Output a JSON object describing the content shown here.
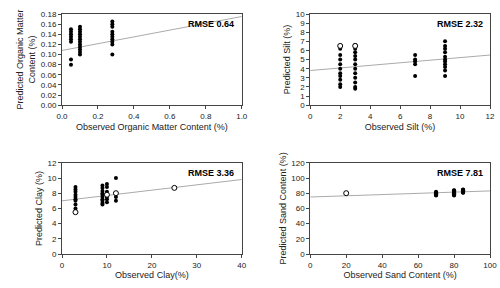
{
  "chart_data": [
    {
      "type": "scatter",
      "annotations": [
        "RMSE 0.64"
      ],
      "xlabel": "Observed Organic Matter Content (%)",
      "ylabel": "Predicted Organic Matter\nContent (%)",
      "xlim": [
        0,
        1.0
      ],
      "ylim": [
        0.0,
        0.18
      ],
      "xticks": [
        {
          "value": 0,
          "label": "0.0"
        },
        0.2,
        0.4,
        0.6,
        0.8,
        {
          "value": 1.0,
          "label": "1.0"
        }
      ],
      "yticks": [
        {
          "value": 0.0,
          "label": "0.00"
        },
        0.02,
        0.04,
        0.06,
        0.08,
        {
          "value": 0.1,
          "label": "0.10"
        },
        0.12,
        0.14,
        0.16,
        0.18
      ],
      "grid": false,
      "series": [
        {
          "type": "line",
          "color": "#aaaaaa",
          "x": [
            0,
            1.0
          ],
          "values": [
            0.108,
            0.175
          ]
        },
        {
          "type": "scatter",
          "color": "black",
          "marker": "circle",
          "x": [
            0.05,
            0.05,
            0.05,
            0.05,
            0.05,
            0.05,
            0.05,
            0.05,
            0.1,
            0.1,
            0.1,
            0.1,
            0.1,
            0.1,
            0.1,
            0.1,
            0.1,
            0.1,
            0.1,
            0.1,
            0.28,
            0.28,
            0.28,
            0.28,
            0.28,
            0.28,
            0.28,
            0.28,
            0.28,
            0.28
          ],
          "values": [
            0.15,
            0.145,
            0.14,
            0.135,
            0.13,
            0.125,
            0.09,
            0.08,
            0.155,
            0.15,
            0.145,
            0.14,
            0.135,
            0.13,
            0.125,
            0.12,
            0.115,
            0.11,
            0.105,
            0.1,
            0.165,
            0.16,
            0.155,
            0.145,
            0.14,
            0.135,
            0.13,
            0.125,
            0.12,
            0.1
          ]
        }
      ]
    },
    {
      "type": "scatter",
      "annotations": [
        "RMSE 2.32"
      ],
      "xlabel": "Observed Silt (%)",
      "ylabel": "Predicted Silt (%)",
      "xlim": [
        0,
        12
      ],
      "ylim": [
        0,
        10
      ],
      "xticks": [
        0,
        2,
        4,
        6,
        8,
        10,
        12
      ],
      "yticks": [
        0,
        1,
        2,
        3,
        4,
        5,
        6,
        7,
        8,
        9,
        10
      ],
      "grid": false,
      "series": [
        {
          "type": "line",
          "color": "#aaaaaa",
          "x": [
            0,
            12
          ],
          "values": [
            3.8,
            5.5
          ]
        },
        {
          "type": "scatter",
          "color": "black",
          "marker": "circle",
          "x": [
            2,
            2,
            2,
            2,
            2,
            2,
            2,
            2,
            2,
            2,
            2,
            3,
            3,
            3,
            3,
            3,
            3,
            3,
            3,
            3,
            3,
            3,
            3,
            7,
            7,
            7,
            7,
            7,
            9,
            9,
            9,
            9,
            9,
            9,
            9,
            9,
            9,
            9,
            9
          ],
          "values": [
            6.5,
            6.2,
            5.5,
            5.0,
            4.5,
            4.0,
            3.5,
            3.2,
            2.8,
            2.3,
            2.0,
            6.6,
            6.2,
            5.8,
            5.4,
            5.0,
            4.5,
            4.0,
            3.5,
            3.0,
            2.5,
            2.0,
            1.8,
            5.5,
            5.0,
            4.8,
            4.5,
            3.2,
            7.0,
            6.5,
            6.2,
            5.8,
            5.3,
            5.0,
            4.8,
            4.5,
            4.2,
            3.8,
            3.2
          ]
        },
        {
          "type": "scatter",
          "color": "black",
          "marker": "open_circle",
          "x": [
            2,
            3
          ],
          "values": [
            6.5,
            6.5
          ]
        }
      ]
    },
    {
      "type": "scatter",
      "annotations": [
        "RMSE 3.36"
      ],
      "xlabel": "Observed Clay(%)",
      "ylabel": "Predicted Clay (%)",
      "xlim": [
        0,
        40
      ],
      "ylim": [
        0,
        12
      ],
      "xticks": [
        0,
        10,
        20,
        30,
        40
      ],
      "yticks": [
        0,
        2,
        4,
        6,
        8,
        10,
        12
      ],
      "grid": false,
      "series": [
        {
          "type": "line",
          "color": "#aaaaaa",
          "x": [
            0,
            40
          ],
          "values": [
            7.0,
            9.8
          ]
        },
        {
          "type": "scatter",
          "color": "black",
          "marker": "circle",
          "x": [
            3,
            3,
            3,
            3,
            3,
            3,
            3,
            3,
            3,
            9,
            9,
            9,
            9,
            9,
            9,
            9,
            9,
            9,
            9,
            10,
            10,
            10,
            10,
            10,
            10,
            10,
            12,
            12,
            12,
            12
          ],
          "values": [
            8.8,
            8.5,
            8.2,
            7.8,
            7.5,
            7.2,
            7.0,
            6.5,
            6.0,
            9.0,
            8.7,
            8.3,
            8.0,
            7.8,
            7.5,
            7.2,
            7.0,
            6.7,
            6.5,
            9.2,
            8.8,
            8.2,
            7.8,
            7.5,
            7.2,
            6.8,
            10.0,
            8.0,
            7.5,
            7.0
          ]
        },
        {
          "type": "scatter",
          "color": "black",
          "marker": "open_circle",
          "x": [
            3,
            10,
            12,
            25
          ],
          "values": [
            5.5,
            7.8,
            8.0,
            8.7
          ]
        }
      ]
    },
    {
      "type": "scatter",
      "annotations": [
        "RMSE 7.81"
      ],
      "xlabel": "Observed Sand Content (%)",
      "ylabel": "Predicted Sand Content (%)",
      "xlim": [
        0,
        100
      ],
      "ylim": [
        0,
        120
      ],
      "xticks": [
        0,
        20,
        40,
        60,
        80,
        100
      ],
      "yticks": [
        0,
        20,
        40,
        60,
        80,
        100,
        120
      ],
      "grid": false,
      "series": [
        {
          "type": "line",
          "color": "#aaaaaa",
          "x": [
            0,
            100
          ],
          "values": [
            75,
            83
          ]
        },
        {
          "type": "scatter",
          "color": "black",
          "marker": "circle",
          "x": [
            70,
            70,
            70,
            70,
            70,
            70,
            70,
            70,
            70,
            70,
            80,
            80,
            80,
            80,
            80,
            80,
            80,
            80,
            80,
            80,
            80,
            80,
            80,
            80,
            80,
            85,
            85,
            85,
            85,
            85,
            85,
            85,
            85,
            85,
            85
          ],
          "values": [
            82,
            81,
            80.5,
            80,
            79.5,
            79,
            78.5,
            78,
            77.5,
            77,
            84,
            83.5,
            83,
            82.5,
            82,
            81.5,
            81,
            80.5,
            80,
            79.5,
            79,
            78.5,
            78,
            77.5,
            77,
            85,
            84.5,
            84,
            83.5,
            83,
            82.5,
            82,
            81.5,
            81,
            80.5
          ]
        },
        {
          "type": "scatter",
          "color": "black",
          "marker": "open_circle",
          "x": [
            20
          ],
          "values": [
            80
          ]
        }
      ]
    }
  ]
}
